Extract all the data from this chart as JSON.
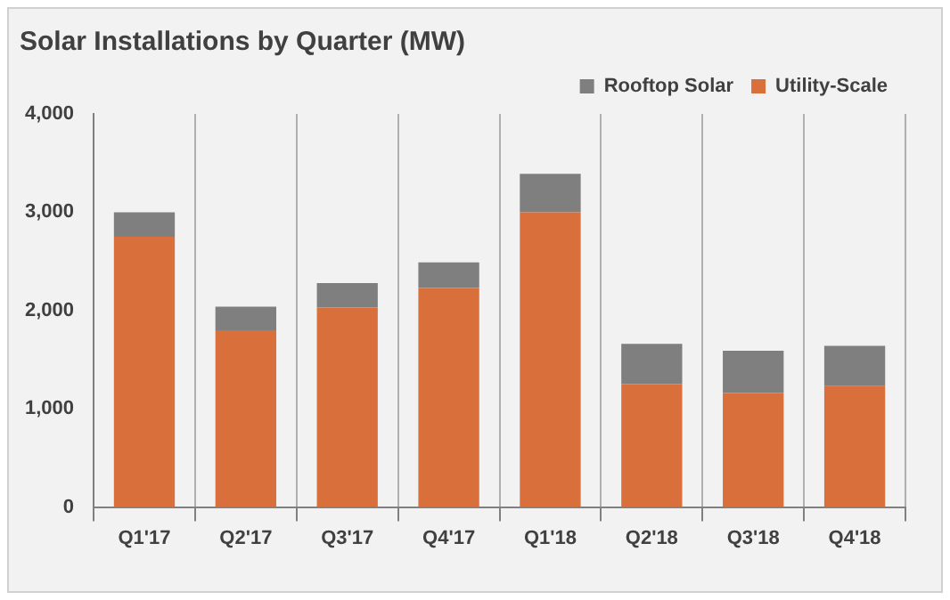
{
  "chart_data": {
    "type": "bar",
    "title": "Solar Installations by Quarter (MW)",
    "stacked": true,
    "legend": "top right",
    "grid": "x",
    "categories": [
      "Q1'17",
      "Q2'17",
      "Q3'17",
      "Q4'17",
      "Q1'18",
      "Q2'18",
      "Q3'18",
      "Q4'18"
    ],
    "series": [
      {
        "name": "Utility-Scale",
        "color": "#d9703c",
        "values": [
          2750,
          1800,
          2030,
          2230,
          3000,
          1250,
          1160,
          1230
        ]
      },
      {
        "name": "Rooftop Solar",
        "color": "#7f7f7f",
        "values": [
          250,
          240,
          250,
          260,
          390,
          410,
          430,
          410
        ]
      }
    ],
    "ylim": [
      0,
      4000
    ],
    "yticks": [
      {
        "value": 0,
        "label": "0"
      },
      {
        "value": 1000,
        "label": "1,000"
      },
      {
        "value": 2000,
        "label": "2,000"
      },
      {
        "value": 3000,
        "label": "3,000"
      },
      {
        "value": 4000,
        "label": "4,000"
      }
    ]
  }
}
